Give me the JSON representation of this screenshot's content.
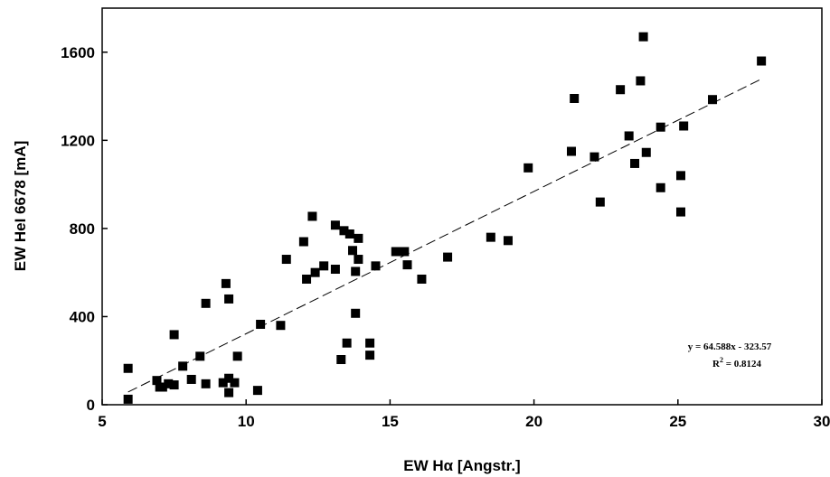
{
  "chart_data": {
    "type": "scatter",
    "xlabel": "EW Hα [Angstr.]",
    "ylabel": "EW HeI 6678 [mA]",
    "xlim": [
      5,
      30
    ],
    "ylim": [
      0,
      1800
    ],
    "x_ticks": [
      5,
      10,
      15,
      20,
      25,
      30
    ],
    "y_ticks": [
      0,
      400,
      800,
      1200,
      1600
    ],
    "x_tick_labels": [
      "5",
      "10",
      "15",
      "20",
      "25",
      "30"
    ],
    "y_tick_labels": [
      "0",
      "400",
      "800",
      "1200",
      "1600"
    ],
    "grid": false,
    "marker": "square",
    "marker_color": "#000000",
    "points": [
      {
        "x": 5.9,
        "y": 165
      },
      {
        "x": 5.9,
        "y": 25
      },
      {
        "x": 6.9,
        "y": 110
      },
      {
        "x": 7.0,
        "y": 80
      },
      {
        "x": 7.1,
        "y": 80
      },
      {
        "x": 7.3,
        "y": 95
      },
      {
        "x": 7.5,
        "y": 90
      },
      {
        "x": 7.5,
        "y": 318
      },
      {
        "x": 7.8,
        "y": 175
      },
      {
        "x": 8.1,
        "y": 115
      },
      {
        "x": 8.4,
        "y": 220
      },
      {
        "x": 8.6,
        "y": 460
      },
      {
        "x": 8.6,
        "y": 95
      },
      {
        "x": 9.2,
        "y": 100
      },
      {
        "x": 9.3,
        "y": 550
      },
      {
        "x": 9.4,
        "y": 480
      },
      {
        "x": 9.4,
        "y": 120
      },
      {
        "x": 9.4,
        "y": 55
      },
      {
        "x": 9.6,
        "y": 100
      },
      {
        "x": 9.7,
        "y": 220
      },
      {
        "x": 10.4,
        "y": 65
      },
      {
        "x": 10.5,
        "y": 365
      },
      {
        "x": 11.2,
        "y": 360
      },
      {
        "x": 11.4,
        "y": 660
      },
      {
        "x": 12.0,
        "y": 740
      },
      {
        "x": 12.1,
        "y": 570
      },
      {
        "x": 12.3,
        "y": 855
      },
      {
        "x": 12.4,
        "y": 600
      },
      {
        "x": 12.7,
        "y": 630
      },
      {
        "x": 13.1,
        "y": 815
      },
      {
        "x": 13.1,
        "y": 615
      },
      {
        "x": 13.3,
        "y": 205
      },
      {
        "x": 13.4,
        "y": 790
      },
      {
        "x": 13.5,
        "y": 280
      },
      {
        "x": 13.6,
        "y": 775
      },
      {
        "x": 13.7,
        "y": 700
      },
      {
        "x": 13.8,
        "y": 605
      },
      {
        "x": 13.8,
        "y": 415
      },
      {
        "x": 13.9,
        "y": 755
      },
      {
        "x": 13.9,
        "y": 660
      },
      {
        "x": 14.3,
        "y": 280
      },
      {
        "x": 14.3,
        "y": 225
      },
      {
        "x": 14.5,
        "y": 630
      },
      {
        "x": 15.2,
        "y": 695
      },
      {
        "x": 15.5,
        "y": 695
      },
      {
        "x": 15.6,
        "y": 635
      },
      {
        "x": 16.1,
        "y": 570
      },
      {
        "x": 17.0,
        "y": 670
      },
      {
        "x": 18.5,
        "y": 760
      },
      {
        "x": 19.1,
        "y": 745
      },
      {
        "x": 19.8,
        "y": 1075
      },
      {
        "x": 21.3,
        "y": 1150
      },
      {
        "x": 21.4,
        "y": 1390
      },
      {
        "x": 22.1,
        "y": 1125
      },
      {
        "x": 22.3,
        "y": 920
      },
      {
        "x": 23.0,
        "y": 1430
      },
      {
        "x": 23.3,
        "y": 1220
      },
      {
        "x": 23.5,
        "y": 1095
      },
      {
        "x": 23.7,
        "y": 1470
      },
      {
        "x": 23.8,
        "y": 1670
      },
      {
        "x": 23.9,
        "y": 1145
      },
      {
        "x": 24.4,
        "y": 1260
      },
      {
        "x": 24.4,
        "y": 985
      },
      {
        "x": 25.1,
        "y": 1040
      },
      {
        "x": 25.1,
        "y": 875
      },
      {
        "x": 25.2,
        "y": 1265
      },
      {
        "x": 26.2,
        "y": 1385
      },
      {
        "x": 27.9,
        "y": 1560
      }
    ],
    "fit": {
      "type": "linear",
      "slope": 64.588,
      "intercept": -323.57,
      "x_range": [
        5.9,
        27.9
      ],
      "style": "dashed"
    },
    "annotations": {
      "equation": "y = 64.588x - 323.57",
      "r2_label": "R",
      "r2_sup": "2",
      "r2_value": " = 0.8124"
    }
  }
}
